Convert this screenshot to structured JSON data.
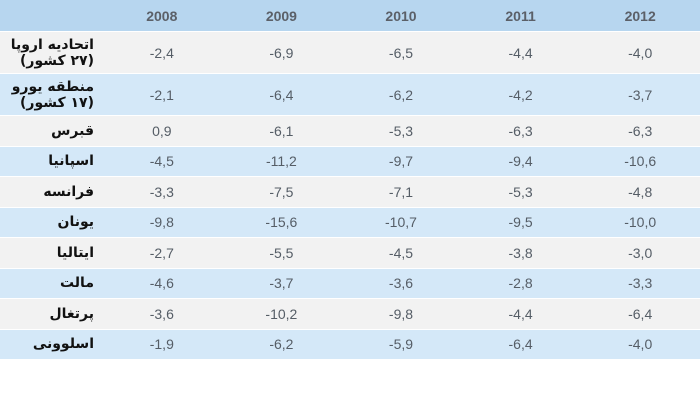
{
  "years": [
    "2008",
    "2009",
    "2010",
    "2011",
    "2012"
  ],
  "rows": [
    {
      "label_line1": "اتحادیه اروپا",
      "label_line2": "(۲۷ کشور)",
      "values": [
        "-2,4",
        "-6,9",
        "-6,5",
        "-4,4",
        "-4,0"
      ]
    },
    {
      "label_line1": "منطقه یورو",
      "label_line2": "(۱۷ کشور)",
      "values": [
        "-2,1",
        "-6,4",
        "-6,2",
        "-4,2",
        "-3,7"
      ]
    },
    {
      "label_line1": "قبرس",
      "label_line2": "",
      "values": [
        "0,9",
        "-6,1",
        "-5,3",
        "-6,3",
        "-6,3"
      ]
    },
    {
      "label_line1": "اسپانیا",
      "label_line2": "",
      "values": [
        "-4,5",
        "-11,2",
        "-9,7",
        "-9,4",
        "-10,6"
      ]
    },
    {
      "label_line1": "فرانسه",
      "label_line2": "",
      "values": [
        "-3,3",
        "-7,5",
        "-7,1",
        "-5,3",
        "-4,8"
      ]
    },
    {
      "label_line1": "یونان",
      "label_line2": "",
      "values": [
        "-9,8",
        "-15,6",
        "-10,7",
        "-9,5",
        "-10,0"
      ]
    },
    {
      "label_line1": "ایتالیا",
      "label_line2": "",
      "values": [
        "-2,7",
        "-5,5",
        "-4,5",
        "-3,8",
        "-3,0"
      ]
    },
    {
      "label_line1": "مالت",
      "label_line2": "",
      "values": [
        "-4,6",
        "-3,7",
        "-3,6",
        "-2,8",
        "-3,3"
      ]
    },
    {
      "label_line1": "پرتغال",
      "label_line2": "",
      "values": [
        "-3,6",
        "-10,2",
        "-9,8",
        "-4,4",
        "-6,4"
      ]
    },
    {
      "label_line1": "اسلوونی",
      "label_line2": "",
      "values": [
        "-1,9",
        "-6,2",
        "-5,9",
        "-6,4",
        "-4,0"
      ]
    }
  ],
  "colors": {
    "header_bg": "#b7d6ef",
    "row_light": "#f2f2f2",
    "row_blue": "#d4e8f8"
  }
}
